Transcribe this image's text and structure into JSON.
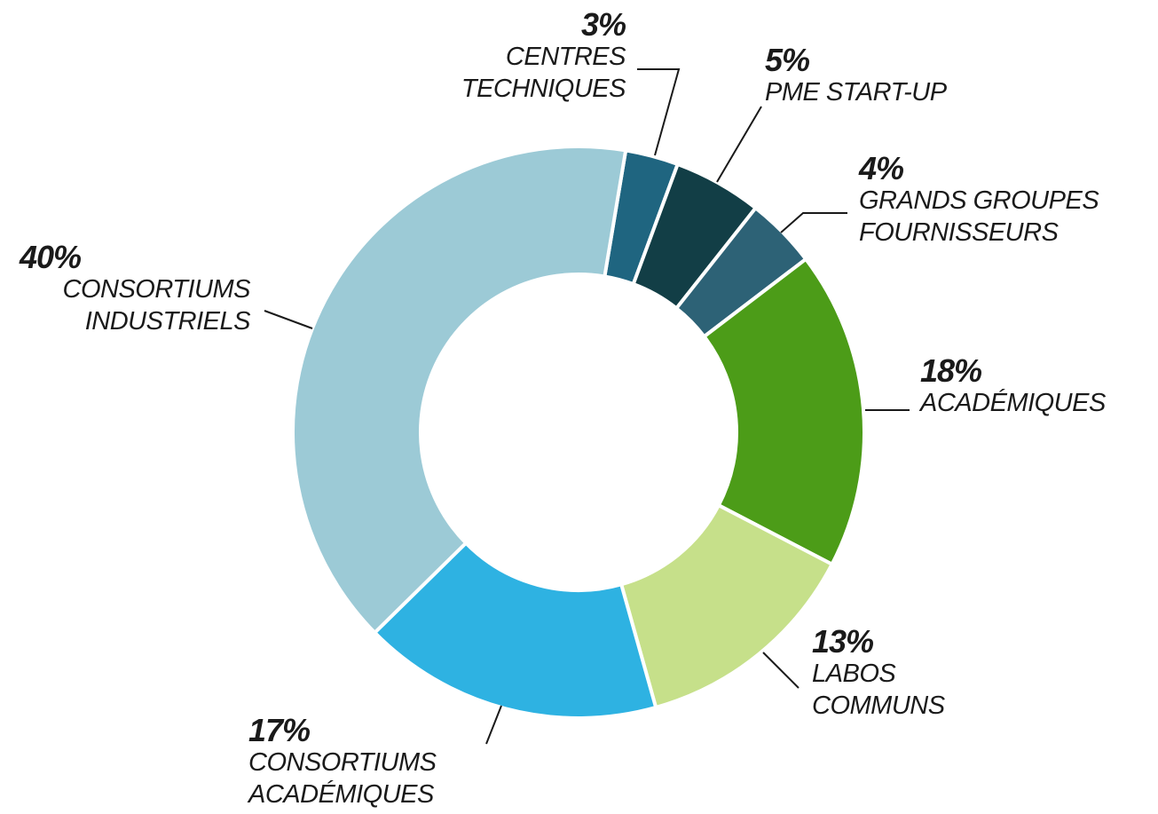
{
  "chart_data": {
    "type": "donut",
    "categories": [
      "CENTRES\nTECHNIQUES",
      "PME START-UP",
      "GRANDS GROUPES\nFOURNISSEURS",
      "ACADÉMIQUES",
      "LABOS\nCOMMUNS",
      "CONSORTIUMS\nACADÉMIQUES",
      "CONSORTIUMS\nINDUSTRIELS"
    ],
    "values": [
      3,
      5,
      4,
      18,
      13,
      17,
      40
    ],
    "value_labels": [
      "3%",
      "5%",
      "4%",
      "18%",
      "13%",
      "17%",
      "40%"
    ],
    "colors": [
      "#1f6580",
      "#123e46",
      "#2d6276",
      "#4c9c18",
      "#c6e08a",
      "#2eb2e2",
      "#9ccad6"
    ]
  }
}
